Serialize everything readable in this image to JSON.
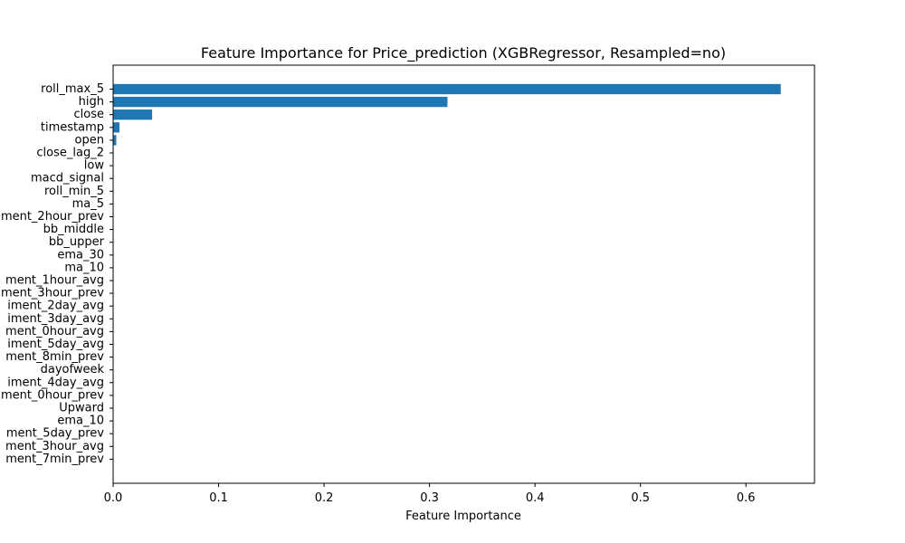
{
  "chart_data": {
    "type": "bar",
    "orientation": "horizontal",
    "title": "Feature Importance for Price_prediction (XGBRegressor, Resampled=no)",
    "xlabel": "Feature Importance",
    "ylabel": "",
    "xlim": [
      0,
      0.665
    ],
    "xticks": [
      0,
      0.1,
      0.2,
      0.3,
      0.4,
      0.5,
      0.6
    ],
    "xtick_labels": [
      "0.0",
      "0.1",
      "0.2",
      "0.3",
      "0.4",
      "0.5",
      "0.6"
    ],
    "grid": false,
    "bar_color": "#1f77b4",
    "categories": [
      "roll_max_5",
      "high",
      "close",
      "timestamp",
      "open",
      "close_lag_2",
      "low",
      "macd_signal",
      "roll_min_5",
      "ma_5",
      "ment_2hour_prev",
      "bb_middle",
      "bb_upper",
      "ema_30",
      "ma_10",
      "ment_1hour_avg",
      "ment_3hour_prev",
      "iment_2day_avg",
      "iment_3day_avg",
      "ment_0hour_avg",
      "iment_5day_avg",
      "ment_8min_prev",
      "dayofweek",
      "iment_4day_avg",
      "ment_0hour_prev",
      "Upward",
      "ema_10",
      "ment_5day_prev",
      "ment_3hour_avg",
      "ment_7min_prev"
    ],
    "values": [
      0.633,
      0.317,
      0.037,
      0.006,
      0.003,
      0.0005,
      0.0003,
      0.0002,
      0.0001,
      0.0001,
      0,
      0,
      0,
      0,
      0,
      0,
      0,
      0,
      0,
      0,
      0,
      0,
      0,
      0,
      0,
      0,
      0,
      0,
      0,
      0
    ]
  }
}
